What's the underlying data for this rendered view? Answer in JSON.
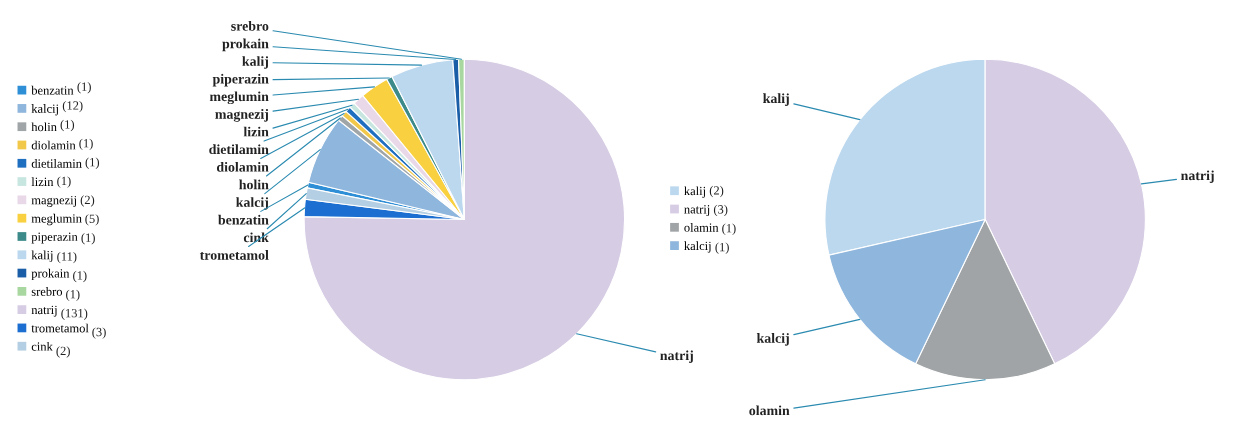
{
  "chart_data": [
    {
      "type": "pie",
      "categories": [
        "benzatin",
        "kalcij",
        "holin",
        "diolamin",
        "dietilamin",
        "lizin",
        "magnezij",
        "meglumin",
        "piperazin",
        "kalij",
        "prokain",
        "srebro",
        "natrij",
        "trometamol",
        "cink"
      ],
      "values": [
        1,
        12,
        1,
        1,
        1,
        1,
        2,
        5,
        1,
        11,
        1,
        1,
        131,
        3,
        2
      ],
      "value_labels": [
        "(1)",
        "(12)",
        "(1)",
        "(1)",
        "(1)",
        "(1)",
        "(2)",
        "(5)",
        "(1)",
        "(11)",
        "(1)",
        "(1)",
        "(131)",
        "(3)",
        "(2)"
      ],
      "colors": [
        "#2f8fd6",
        "#8fb6dc",
        "#a0a6a8",
        "#f2c84a",
        "#1f6fc0",
        "#c8e6e0",
        "#e8d8e8",
        "#f8d040",
        "#3d8a8a",
        "#bcd8ee",
        "#1a5ea8",
        "#a8d8a0",
        "#d6cce4",
        "#1c6fd0",
        "#b4cfe3"
      ],
      "legend": "left"
    },
    {
      "type": "pie",
      "categories": [
        "kalij",
        "natrij",
        "olamin",
        "kalcij"
      ],
      "values": [
        2,
        3,
        1,
        1
      ],
      "value_labels": [
        "(2)",
        "(3)",
        "(1)",
        "(1)"
      ],
      "colors": [
        "#bcd8ee",
        "#d6cce4",
        "#a0a4a6",
        "#8fb6dc"
      ],
      "legend": "left"
    }
  ]
}
